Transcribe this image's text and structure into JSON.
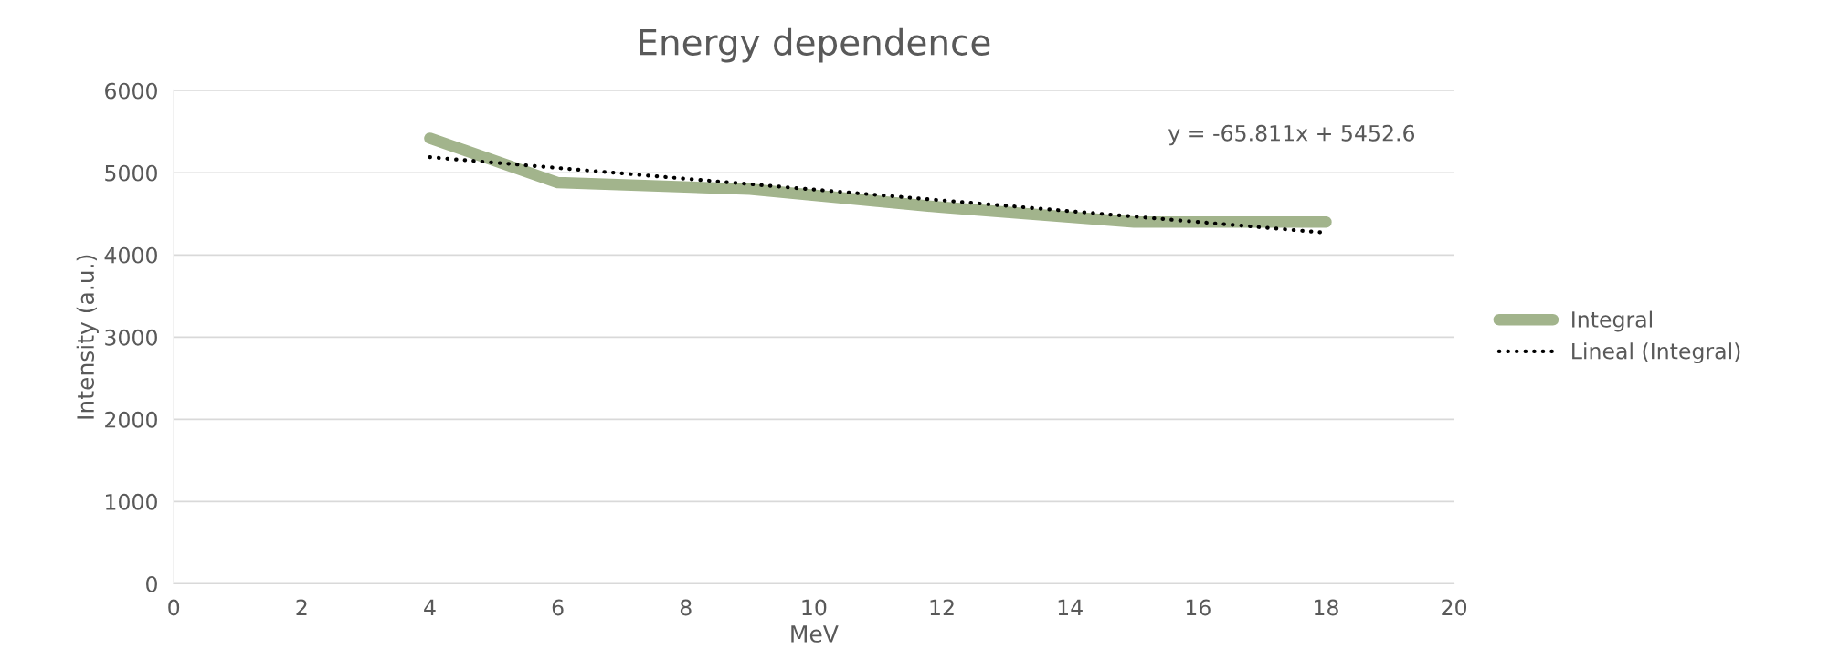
{
  "chart_data": {
    "type": "line",
    "title": "Energy dependence",
    "xlabel": "MeV",
    "ylabel": "Intensity (a.u.)",
    "xlim": [
      0,
      20
    ],
    "xticks": [
      0,
      2,
      4,
      6,
      8,
      10,
      12,
      14,
      16,
      18,
      20
    ],
    "ylim": [
      0,
      6000
    ],
    "yticks": [
      0,
      1000,
      2000,
      3000,
      4000,
      5000,
      6000
    ],
    "grid": "y",
    "legend": "right",
    "marker": "none",
    "annotations": [
      "y = -65.811x + 5452.6"
    ],
    "series": [
      {
        "name": "Integral",
        "color": "#a2b48c",
        "x": [
          4,
          6,
          9,
          12,
          15,
          18
        ],
        "values": [
          5420,
          4880,
          4800,
          4580,
          4400,
          4400
        ],
        "line_style": "solid"
      },
      {
        "name": "Lineal (Integral)",
        "color": "#000000",
        "x": [
          4,
          18
        ],
        "values": [
          5190,
          4270
        ],
        "line_style": "dotted"
      }
    ]
  }
}
